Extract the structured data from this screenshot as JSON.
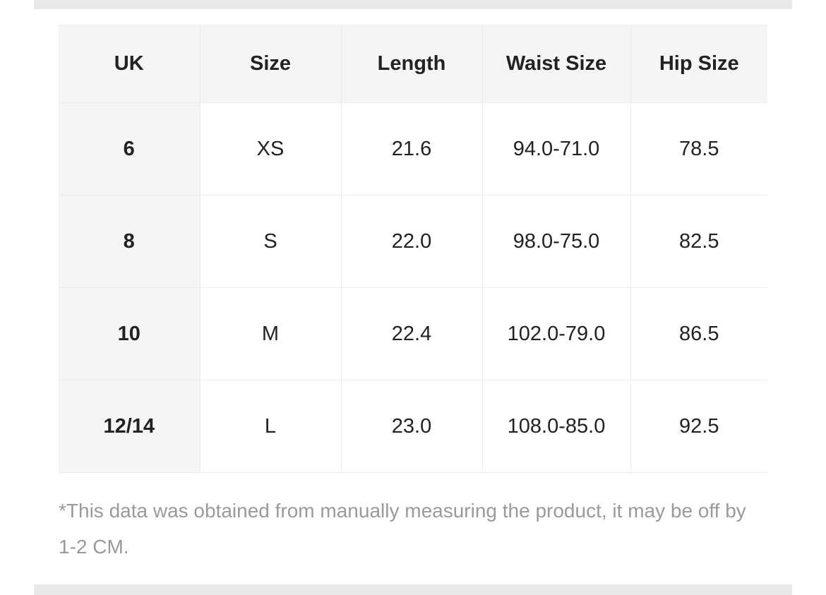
{
  "table": {
    "headers": [
      "UK",
      "Size",
      "Length",
      "Waist Size",
      "Hip Size"
    ],
    "rows": [
      [
        "6",
        "XS",
        "21.6",
        "94.0-71.0",
        "78.5"
      ],
      [
        "8",
        "S",
        "22.0",
        "98.0-75.0",
        "82.5"
      ],
      [
        "10",
        "M",
        "22.4",
        "102.0-79.0",
        "86.5"
      ],
      [
        "12/14",
        "L",
        "23.0",
        "108.0-85.0",
        "92.5"
      ]
    ]
  },
  "footnote": "*This data was obtained from manually measuring the product, it may be off by 1-2 CM."
}
